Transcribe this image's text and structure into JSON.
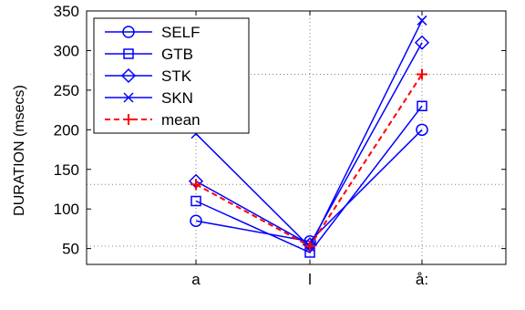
{
  "colors": {
    "series": "#0000ff",
    "mean": "#ff0000",
    "axis": "#000000",
    "grid": "#808080",
    "background": "#ffffff"
  },
  "chart_data": {
    "type": "line",
    "title": "",
    "xlabel": "",
    "ylabel": "DURATION (msecs)",
    "categories": [
      "a",
      "l",
      "å:"
    ],
    "ylim": [
      30,
      350
    ],
    "yticks": [
      50,
      100,
      150,
      200,
      250,
      300,
      350
    ],
    "grid": "dotted reference lines at the mean values",
    "legend_position": "top-left",
    "series": [
      {
        "name": "SELF",
        "marker": "circle",
        "style": "solid",
        "color": "#0000ff",
        "values": [
          85,
          59,
          200
        ]
      },
      {
        "name": "GTB",
        "marker": "square",
        "style": "solid",
        "color": "#0000ff",
        "values": [
          110,
          45,
          230
        ]
      },
      {
        "name": "STK",
        "marker": "diamond",
        "style": "solid",
        "color": "#0000ff",
        "values": [
          135,
          55,
          310
        ]
      },
      {
        "name": "SKN",
        "marker": "x",
        "style": "solid",
        "color": "#0000ff",
        "values": [
          195,
          52,
          338
        ]
      },
      {
        "name": "mean",
        "marker": "plus",
        "style": "dashed",
        "color": "#ff0000",
        "values": [
          131,
          53,
          270
        ]
      }
    ]
  }
}
